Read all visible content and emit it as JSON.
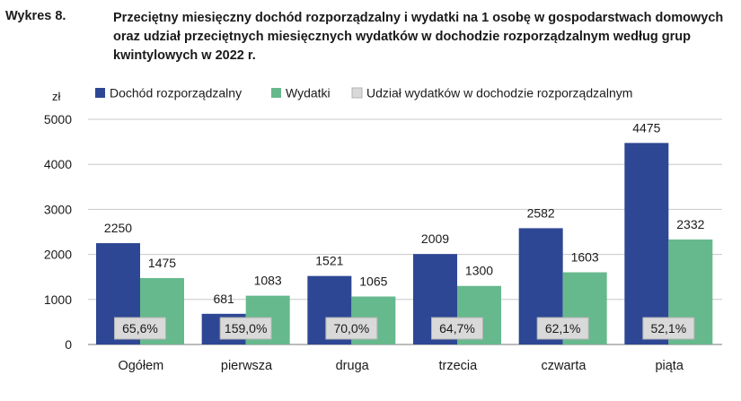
{
  "title": {
    "prefix": "Wykres 8.",
    "text": "Przeciętny miesięczny dochód rozporządzalny i wydatki na 1 osobę w gospodarstwach domowych oraz udział przeciętnych miesięcznych wydatków w dochodzie rozporządzalnym według grup kwintylowych w 2022 r."
  },
  "colors": {
    "income": "#2e4794",
    "expenses": "#66b98d",
    "share_box": "#d9d9d9",
    "share_box_border": "#b3b3b3",
    "grid": "#c8c8c8"
  },
  "chart_data": {
    "type": "bar",
    "ylabel": "zł",
    "ylim": [
      0,
      5000
    ],
    "yticks": [
      0,
      1000,
      2000,
      3000,
      4000,
      5000
    ],
    "grid": true,
    "legend_position": "top",
    "categories": [
      "Ogółem",
      "pierwsza",
      "druga",
      "trzecia",
      "czwarta",
      "piąta"
    ],
    "series": [
      {
        "name": "Dochód rozporządzalny",
        "values": [
          2250,
          681,
          1521,
          2009,
          2582,
          4475
        ]
      },
      {
        "name": "Wydatki",
        "values": [
          1475,
          1083,
          1065,
          1300,
          1603,
          2332
        ]
      },
      {
        "name": "Udział wydatków w dochodzie rozporządzalnym",
        "values": [
          "65,6%",
          "159,0%",
          "70,0%",
          "64,7%",
          "62,1%",
          "52,1%"
        ]
      }
    ]
  }
}
